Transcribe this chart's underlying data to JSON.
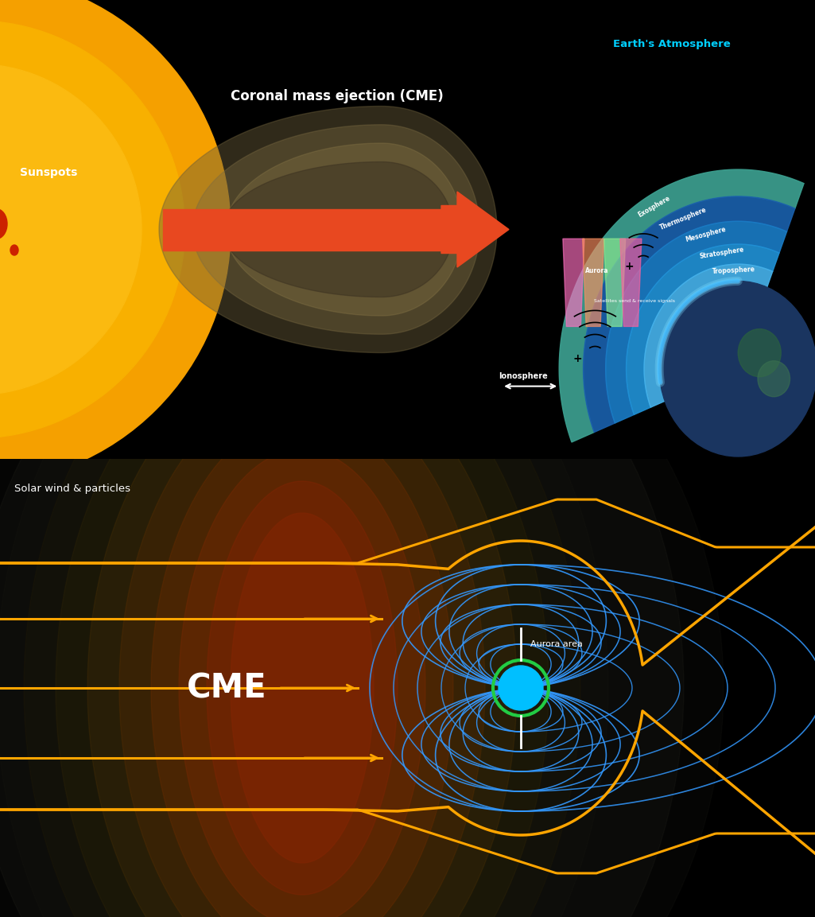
{
  "bg_color": "#000000",
  "sun_color": "#FFA500",
  "sunspot_color": "#CC2200",
  "cme_arrow_color": "#E84820",
  "text_color": "#FFFFFF",
  "label_sunspots": "Sunspots",
  "label_cme_top": "Coronal mass ejection (CME)",
  "label_solar_wind": "Solar wind & particles",
  "label_cme_bottom": "CME",
  "label_aurora_area": "Aurora area",
  "label_earth_atm": "Earth's Atmosphere",
  "label_ionosphere": "Ionosphere",
  "label_satellites": "Satellites send & receive signals",
  "label_aurora": "Aurora",
  "atm_layers": [
    "Exosphere",
    "Thermosphere",
    "Mesosphere",
    "Stratosphere",
    "Troposphere"
  ],
  "atm_radii": [
    1.0,
    0.865,
    0.74,
    0.625,
    0.525,
    0.44
  ],
  "atm_colors": [
    "#3CA090",
    "#1A5FAA",
    "#1A7BC4",
    "#2090D4",
    "#45B0E8",
    "#75CCF0"
  ],
  "orange_color": "#FFA500",
  "blue_color": "#3399FF",
  "earth_blue": "#00BFFF",
  "earth_green": "#228B22"
}
